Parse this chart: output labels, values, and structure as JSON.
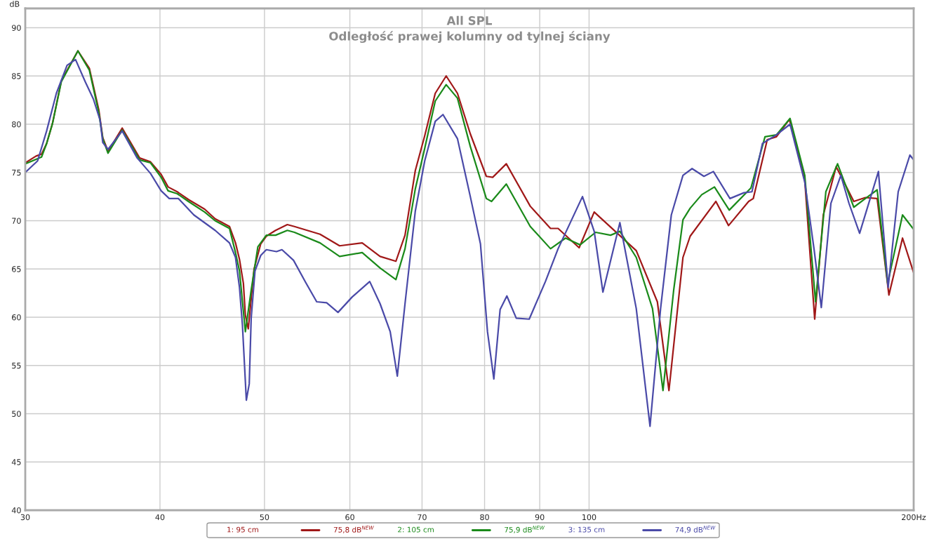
{
  "chart_data": {
    "type": "line",
    "title": "All SPL",
    "subtitle": "Odległość prawej kolumny od tylnej ściany",
    "ylabel": "dB",
    "xlim": [
      30,
      200
    ],
    "ylim": [
      40,
      92
    ],
    "log": "x",
    "xticks": [
      30,
      40,
      50,
      60,
      70,
      80,
      90,
      100,
      {
        "value": 200,
        "label": "200Hz"
      }
    ],
    "yticks": [
      40,
      45,
      50,
      55,
      60,
      65,
      70,
      75,
      80,
      85,
      90
    ],
    "grid": true,
    "legend": "bottom",
    "annotations": [
      "75,8 dB$^{NEW}$",
      "75,9 dB$^{NEW}$",
      "74,9 dB$^{NEW}$"
    ],
    "series": [
      {
        "name": "1: 95 cm",
        "color": "#a01818",
        "x": [
          30,
          30.7,
          31.06,
          31.4,
          31.8,
          32.4,
          33.57,
          34.4,
          35.1,
          35.4,
          35.8,
          36.9,
          38.3,
          39.2,
          40.1,
          40.7,
          41.5,
          42.5,
          44.0,
          45.0,
          46.4,
          47.0,
          47.4,
          47.8,
          48.0,
          48.3,
          48.9,
          49.6,
          50.2,
          51.2,
          52.5,
          53.3,
          56.3,
          58.7,
          61.6,
          64.0,
          66.2,
          67.5,
          69.0,
          70.4,
          72.0,
          73.7,
          75.5,
          77.6,
          80.3,
          81.4,
          83.8,
          88.2,
          92.1,
          93.6,
          97.9,
          101.1,
          110.6,
          115.7,
          118.6,
          122.2,
          124.1,
          131.1,
          134.7,
          140.6,
          142.0,
          146.3,
          149.2,
          153.4,
          158.5,
          161.9,
          164.9,
          169.5,
          176.0,
          180.4,
          185.0,
          189.7,
          195.3,
          200
        ],
        "values": [
          76.0,
          76.7,
          76.9,
          78.0,
          80.1,
          84.5,
          87.6,
          85.8,
          81.5,
          78.6,
          77.2,
          79.6,
          76.5,
          76.1,
          74.8,
          73.5,
          73.0,
          72.2,
          71.2,
          70.2,
          69.4,
          67.7,
          66.0,
          63.5,
          60.2,
          58.8,
          65.0,
          67.6,
          68.4,
          69.0,
          69.6,
          69.4,
          68.6,
          67.4,
          67.7,
          66.3,
          65.8,
          68.5,
          75.2,
          78.8,
          83.2,
          85.0,
          83.2,
          79.0,
          74.6,
          74.5,
          75.9,
          71.5,
          69.2,
          69.2,
          67.2,
          70.9,
          66.9,
          61.6,
          52.4,
          66.2,
          68.4,
          72.0,
          69.5,
          72.0,
          72.3,
          78.4,
          78.7,
          80.5,
          74.2,
          59.8,
          70.6,
          75.6,
          72.0,
          72.4,
          72.3,
          62.3,
          68.2,
          64.6
        ]
      },
      {
        "name": "2: 105 cm",
        "color": "#1a8a1a",
        "x": [
          30,
          31.06,
          31.4,
          31.8,
          32.4,
          33.57,
          34.4,
          35.1,
          35.4,
          35.8,
          36.9,
          38.3,
          39.2,
          40.1,
          40.7,
          41.5,
          42.5,
          44.0,
          45.0,
          46.4,
          47.0,
          47.4,
          48.0,
          48.6,
          49.3,
          50.2,
          51.2,
          52.5,
          53.3,
          56.3,
          58.7,
          61.6,
          64.0,
          66.2,
          67.5,
          69.0,
          70.4,
          72.0,
          73.7,
          75.5,
          77.6,
          80.3,
          81.2,
          83.8,
          88.2,
          92.1,
          95.1,
          98.1,
          101.4,
          104.7,
          106.8,
          110.6,
          114.5,
          117.1,
          119.8,
          122.2,
          124.1,
          127.2,
          130.7,
          134.9,
          141.3,
          145.6,
          149.2,
          153.6,
          158.5,
          162.2,
          165.8,
          170.0,
          176.0,
          180.4,
          185.0,
          189.2,
          195.3,
          200
        ],
        "values": [
          75.9,
          76.6,
          78.0,
          80.1,
          84.4,
          87.6,
          85.6,
          81.2,
          78.5,
          77.0,
          79.4,
          76.3,
          76.0,
          74.5,
          73.1,
          72.8,
          72.0,
          70.9,
          70.0,
          69.2,
          66.7,
          64.8,
          58.5,
          62.8,
          67.3,
          68.5,
          68.5,
          69.0,
          68.8,
          67.7,
          66.3,
          66.7,
          65.1,
          63.9,
          67.1,
          73.3,
          77.5,
          82.4,
          84.1,
          82.7,
          77.7,
          72.3,
          72.0,
          73.8,
          69.4,
          67.1,
          68.2,
          67.5,
          68.8,
          68.5,
          68.9,
          66.2,
          60.9,
          52.4,
          62.8,
          70.1,
          71.3,
          72.7,
          73.5,
          71.1,
          73.4,
          78.7,
          78.9,
          80.6,
          74.7,
          61.6,
          73.0,
          75.9,
          71.4,
          72.3,
          73.2,
          63.5,
          70.6,
          69.1
        ]
      },
      {
        "name": "3: 135 cm",
        "color": "#4a4aa8",
        "x": [
          30,
          30.8,
          31.4,
          32.06,
          32.8,
          33.4,
          34.1,
          34.7,
          35.2,
          35.4,
          35.8,
          36.9,
          38.1,
          39.2,
          40.1,
          40.8,
          41.6,
          43.0,
          45.0,
          46.4,
          47.0,
          47.4,
          47.7,
          48.1,
          48.4,
          48.6,
          49.0,
          49.6,
          50.2,
          51.3,
          51.9,
          53.2,
          54.6,
          55.9,
          57.1,
          58.5,
          60.3,
          62.6,
          64.0,
          65.4,
          66.4,
          67.5,
          69.0,
          70.4,
          72.0,
          73.2,
          75.5,
          77.6,
          79.3,
          80.5,
          81.6,
          82.7,
          83.9,
          85.6,
          88.0,
          91.1,
          93.6,
          98.6,
          101.1,
          103.0,
          106.8,
          110.6,
          113.9,
          116.5,
          119.2,
          122.2,
          124.6,
          127.8,
          130.4,
          135.1,
          139.2,
          141.6,
          144.8,
          149.2,
          153.6,
          158.5,
          161.7,
          164.2,
          167.6,
          171.2,
          174.2,
          178.2,
          185.5,
          189.4,
          193.5,
          198.4,
          200
        ],
        "values": [
          75.0,
          76.2,
          79.3,
          83.2,
          86.1,
          86.7,
          84.4,
          82.6,
          80.4,
          78.1,
          77.4,
          79.3,
          76.5,
          74.9,
          73.1,
          72.3,
          72.3,
          70.6,
          69.0,
          67.7,
          66.2,
          63.1,
          59.2,
          51.4,
          53.1,
          59.9,
          64.8,
          66.4,
          67.0,
          66.8,
          67.0,
          65.9,
          63.6,
          61.6,
          61.5,
          60.5,
          62.1,
          63.7,
          61.4,
          58.5,
          53.9,
          61.4,
          71.0,
          76.2,
          80.3,
          81.0,
          78.5,
          72.5,
          67.6,
          58.5,
          53.6,
          60.8,
          62.2,
          59.9,
          59.8,
          63.7,
          67.1,
          72.5,
          68.9,
          62.6,
          69.8,
          60.9,
          48.7,
          60.9,
          70.6,
          74.7,
          75.4,
          74.6,
          75.1,
          72.3,
          72.9,
          73.0,
          78.0,
          78.9,
          80.0,
          74.0,
          67.0,
          61.0,
          71.8,
          74.7,
          71.8,
          68.7,
          75.1,
          63.1,
          73.0,
          76.8,
          76.3
        ]
      }
    ]
  }
}
